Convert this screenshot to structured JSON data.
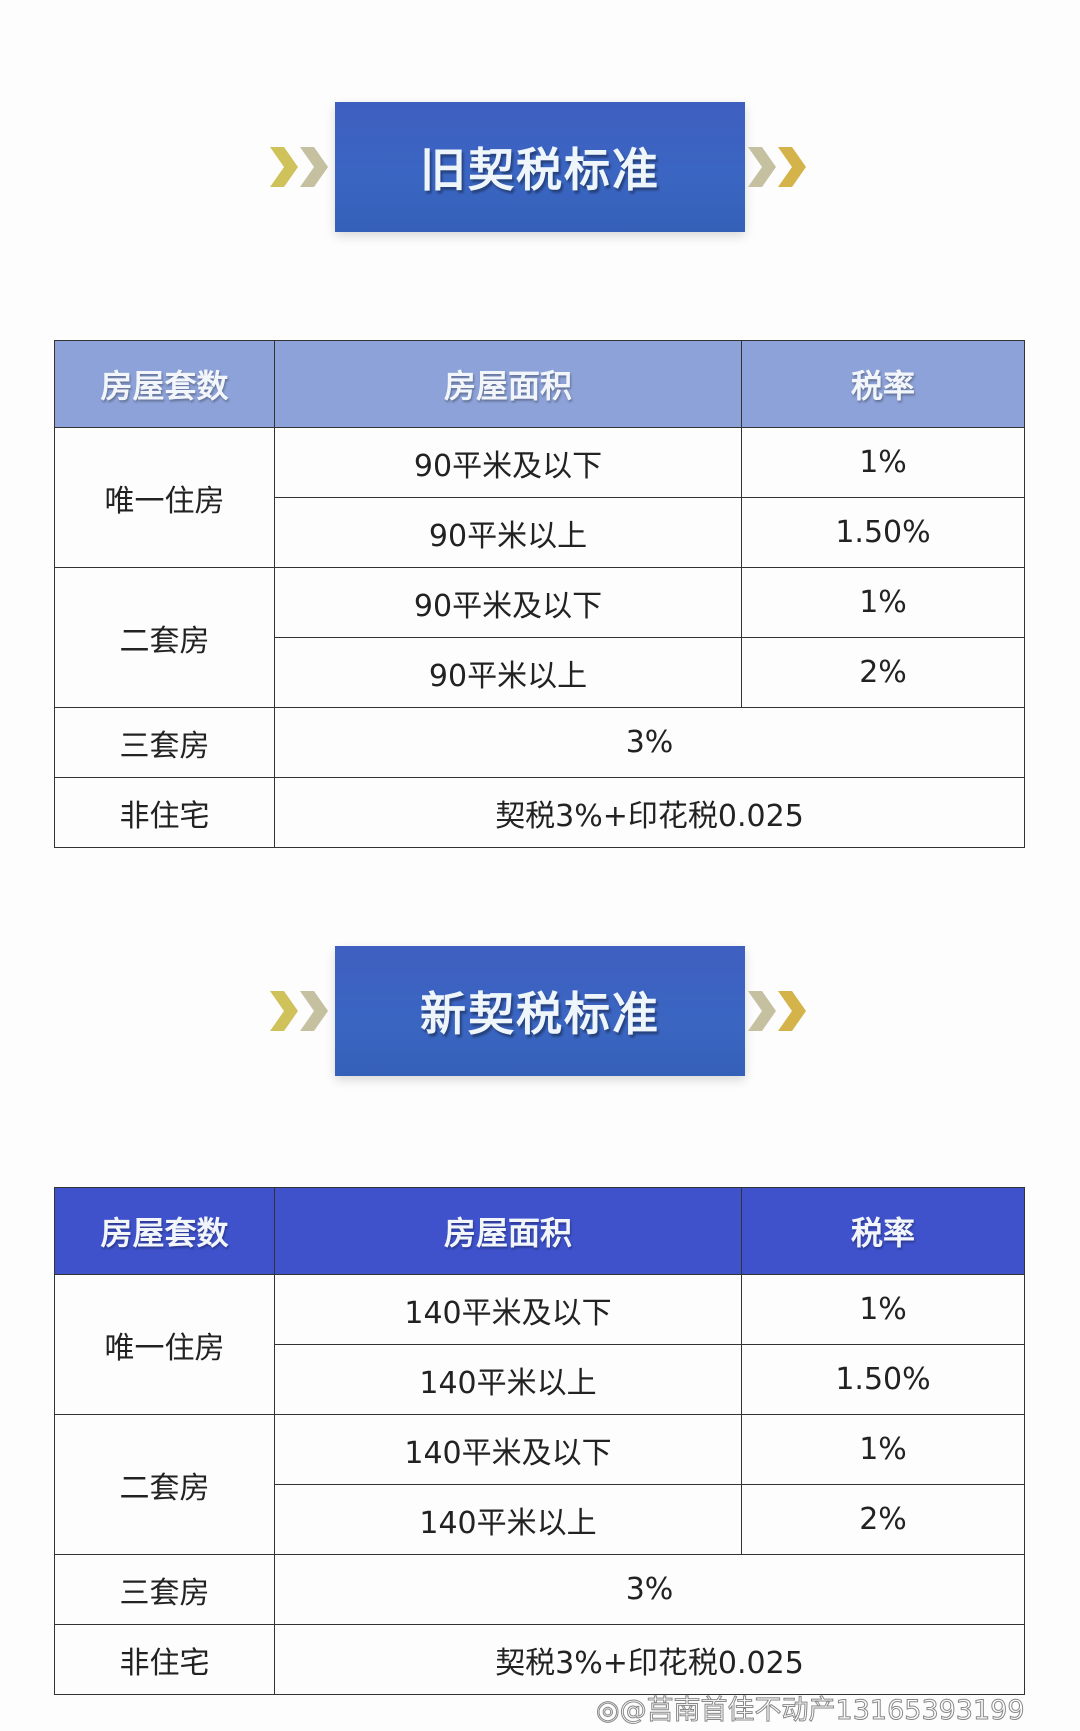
{
  "sections": [
    {
      "title": "旧契税标准",
      "headers": [
        "房屋套数",
        "房屋面积",
        "税率"
      ],
      "rows": {
        "r1": {
          "label": "唯一住房",
          "a1": "90平米及以下",
          "v1": "1%",
          "a2": "90平米以上",
          "v2": "1.50%"
        },
        "r2": {
          "label": "二套房",
          "a1": "90平米及以下",
          "v1": "1%",
          "a2": "90平米以上",
          "v2": "2%"
        },
        "r3": {
          "label": "三套房",
          "v": "3%"
        },
        "r4": {
          "label": "非住宅",
          "v": "契税3%+印花税0.025"
        }
      }
    },
    {
      "title": "新契税标准",
      "headers": [
        "房屋套数",
        "房屋面积",
        "税率"
      ],
      "rows": {
        "r1": {
          "label": "唯一住房",
          "a1": "140平米及以下",
          "v1": "1%",
          "a2": "140平米以上",
          "v2": "1.50%"
        },
        "r2": {
          "label": "二套房",
          "a1": "140平米及以下",
          "v1": "1%",
          "a2": "140平米以上",
          "v2": "2%"
        },
        "r3": {
          "label": "三套房",
          "v": "3%"
        },
        "r4": {
          "label": "非住宅",
          "v": "契税3%+印花税0.025"
        }
      }
    }
  ],
  "watermark": "@莒南首佳不动产13165393199",
  "colors": {
    "banner": "#3a62c0",
    "header_old": "#8da2d8",
    "header_new": "#3f52cc",
    "chevron": "#c9b84a"
  }
}
